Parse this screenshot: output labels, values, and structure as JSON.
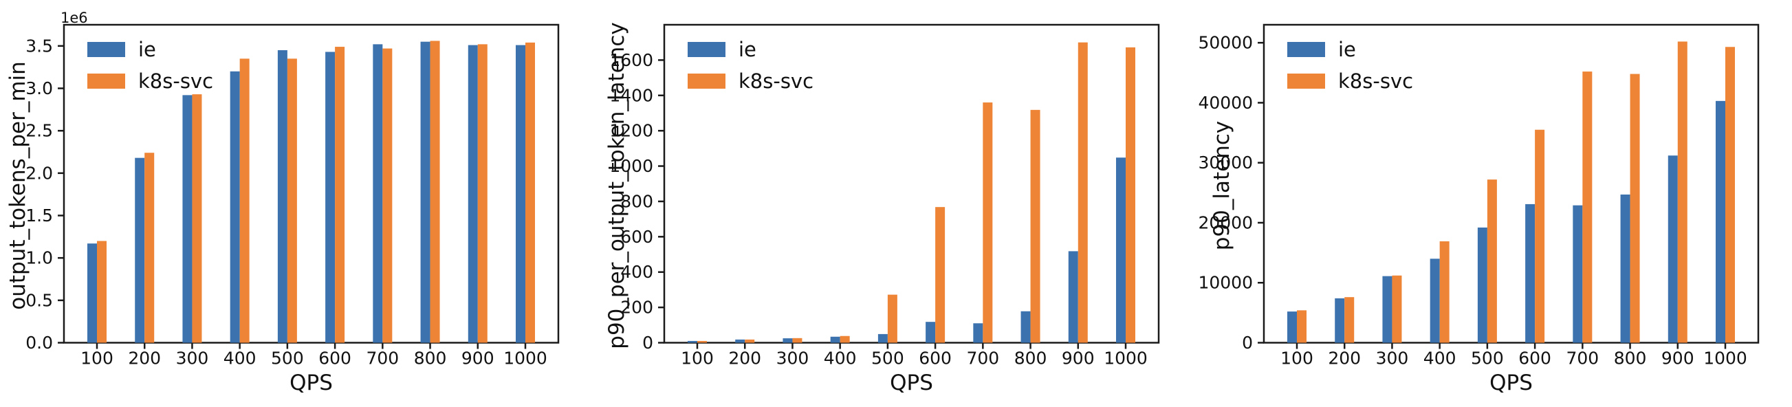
{
  "figure": {
    "background": "#ffffff",
    "axis_color": "#1a1a1a",
    "series_colors": {
      "ie": "#3c73af",
      "k8s-svc": "#ee8435"
    },
    "xlabel": "QPS",
    "legend_items": [
      "ie",
      "k8s-svc"
    ]
  },
  "chart_data": [
    {
      "type": "bar",
      "title": "",
      "xlabel": "QPS",
      "ylabel": "output_tokens_per_min",
      "offset_text": "1e6",
      "legend": [
        "ie",
        "k8s-svc"
      ],
      "legend_position": "upper left",
      "grid": false,
      "categories": [
        "100",
        "200",
        "300",
        "400",
        "500",
        "600",
        "700",
        "800",
        "900",
        "1000"
      ],
      "series": [
        {
          "name": "ie",
          "color": "#3c73af",
          "values": [
            1170000,
            2180000,
            2920000,
            3200000,
            3450000,
            3430000,
            3520000,
            3550000,
            3510000,
            3510000
          ]
        },
        {
          "name": "k8s-svc",
          "color": "#ee8435",
          "values": [
            1200000,
            2240000,
            2930000,
            3350000,
            3350000,
            3490000,
            3470000,
            3560000,
            3520000,
            3540000
          ]
        }
      ],
      "ylim": [
        0,
        3750000
      ],
      "yticks": {
        "values": [
          0,
          500000,
          1000000,
          1500000,
          2000000,
          2500000,
          3000000,
          3500000
        ],
        "labels": [
          "0.0",
          "0.5",
          "1.0",
          "1.5",
          "2.0",
          "2.5",
          "3.0",
          "3.5"
        ]
      }
    },
    {
      "type": "bar",
      "title": "",
      "xlabel": "QPS",
      "ylabel": "p90_per_output_token_latency",
      "offset_text": "",
      "legend": [
        "ie",
        "k8s-svc"
      ],
      "legend_position": "upper left",
      "grid": false,
      "categories": [
        "100",
        "200",
        "300",
        "400",
        "500",
        "600",
        "700",
        "800",
        "900",
        "1000"
      ],
      "series": [
        {
          "name": "ie",
          "color": "#3c73af",
          "values": [
            10,
            18,
            25,
            34,
            49,
            118,
            110,
            178,
            518,
            1048
          ]
        },
        {
          "name": "k8s-svc",
          "color": "#ee8435",
          "values": [
            10,
            18,
            26,
            38,
            272,
            768,
            1360,
            1318,
            1700,
            1672
          ]
        }
      ],
      "ylim": [
        0,
        1800
      ],
      "yticks": {
        "values": [
          0,
          200,
          400,
          600,
          800,
          1000,
          1200,
          1400,
          1600
        ],
        "labels": [
          "0",
          "200",
          "400",
          "600",
          "800",
          "1000",
          "1200",
          "1400",
          "1600"
        ]
      }
    },
    {
      "type": "bar",
      "title": "",
      "xlabel": "QPS",
      "ylabel": "p90_latency",
      "offset_text": "",
      "legend": [
        "ie",
        "k8s-svc"
      ],
      "legend_position": "upper left",
      "grid": false,
      "categories": [
        "100",
        "200",
        "300",
        "400",
        "500",
        "600",
        "700",
        "800",
        "900",
        "1000"
      ],
      "series": [
        {
          "name": "ie",
          "color": "#3c73af",
          "values": [
            5200,
            7400,
            11100,
            14000,
            19200,
            23100,
            22900,
            24700,
            31200,
            40300
          ]
        },
        {
          "name": "k8s-svc",
          "color": "#ee8435",
          "values": [
            5400,
            7600,
            11200,
            16900,
            27200,
            35500,
            45200,
            44800,
            50200,
            49300
          ]
        }
      ],
      "ylim": [
        0,
        53000
      ],
      "yticks": {
        "values": [
          0,
          10000,
          20000,
          30000,
          40000,
          50000
        ],
        "labels": [
          "0",
          "10000",
          "20000",
          "30000",
          "40000",
          "50000"
        ]
      }
    }
  ]
}
